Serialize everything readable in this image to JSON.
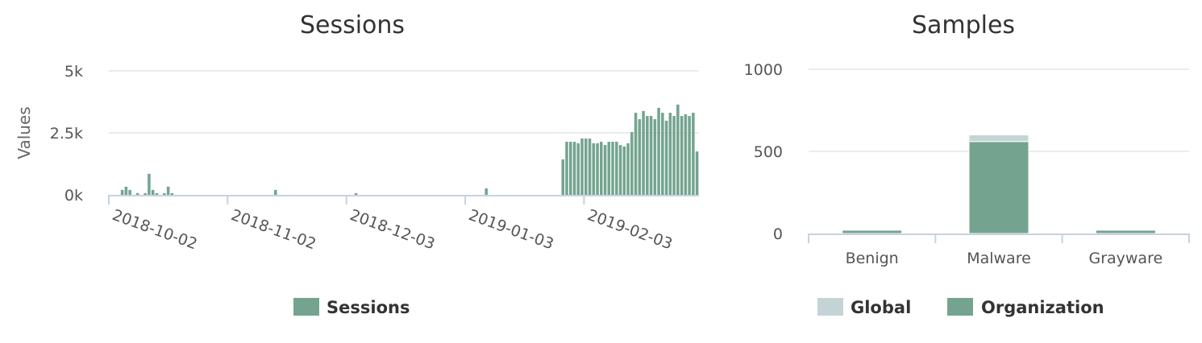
{
  "chart_data": [
    {
      "type": "bar",
      "title": "Sessions",
      "ylabel": "Values",
      "xlabel": "",
      "ylim": [
        0,
        5000
      ],
      "y_ticks": [
        "0k",
        "2.5k",
        "5k"
      ],
      "y_tick_values": [
        0,
        2500,
        5000
      ],
      "x_range": [
        "2018-10-02",
        "2019-03-04"
      ],
      "x_ticks": [
        "2018-10-02",
        "2018-11-02",
        "2018-12-03",
        "2019-01-03",
        "2019-02-03"
      ],
      "grid": true,
      "legend_position": "bottom",
      "series": [
        {
          "name": "Sessions",
          "color": "#74a490",
          "points": [
            {
              "date": "2018-10-05",
              "value": 200
            },
            {
              "date": "2018-10-06",
              "value": 330
            },
            {
              "date": "2018-10-07",
              "value": 200
            },
            {
              "date": "2018-10-09",
              "value": 70
            },
            {
              "date": "2018-10-11",
              "value": 70
            },
            {
              "date": "2018-10-12",
              "value": 850
            },
            {
              "date": "2018-10-13",
              "value": 200
            },
            {
              "date": "2018-10-14",
              "value": 70
            },
            {
              "date": "2018-10-16",
              "value": 70
            },
            {
              "date": "2018-10-17",
              "value": 330
            },
            {
              "date": "2018-10-18",
              "value": 70
            },
            {
              "date": "2018-11-14",
              "value": 200
            },
            {
              "date": "2018-12-05",
              "value": 70
            },
            {
              "date": "2019-01-08",
              "value": 260
            },
            {
              "date": "2019-01-28",
              "value": 1430
            },
            {
              "date": "2019-01-29",
              "value": 2140
            },
            {
              "date": "2019-01-30",
              "value": 2140
            },
            {
              "date": "2019-01-31",
              "value": 2140
            },
            {
              "date": "2019-02-01",
              "value": 2080
            },
            {
              "date": "2019-02-02",
              "value": 2270
            },
            {
              "date": "2019-02-03",
              "value": 2270
            },
            {
              "date": "2019-02-04",
              "value": 2270
            },
            {
              "date": "2019-02-05",
              "value": 2080
            },
            {
              "date": "2019-02-06",
              "value": 2080
            },
            {
              "date": "2019-02-07",
              "value": 2140
            },
            {
              "date": "2019-02-08",
              "value": 2010
            },
            {
              "date": "2019-02-09",
              "value": 2140
            },
            {
              "date": "2019-02-10",
              "value": 2140
            },
            {
              "date": "2019-02-11",
              "value": 2140
            },
            {
              "date": "2019-02-12",
              "value": 2010
            },
            {
              "date": "2019-02-13",
              "value": 1950
            },
            {
              "date": "2019-02-14",
              "value": 2080
            },
            {
              "date": "2019-02-15",
              "value": 2530
            },
            {
              "date": "2019-02-16",
              "value": 3310
            },
            {
              "date": "2019-02-17",
              "value": 3050
            },
            {
              "date": "2019-02-18",
              "value": 3380
            },
            {
              "date": "2019-02-19",
              "value": 3180
            },
            {
              "date": "2019-02-20",
              "value": 3180
            },
            {
              "date": "2019-02-21",
              "value": 3050
            },
            {
              "date": "2019-02-22",
              "value": 3510
            },
            {
              "date": "2019-02-23",
              "value": 3310
            },
            {
              "date": "2019-02-24",
              "value": 2990
            },
            {
              "date": "2019-02-25",
              "value": 3310
            },
            {
              "date": "2019-02-26",
              "value": 3180
            },
            {
              "date": "2019-02-27",
              "value": 3640
            },
            {
              "date": "2019-02-28",
              "value": 3180
            },
            {
              "date": "2019-03-01",
              "value": 3250
            },
            {
              "date": "2019-03-02",
              "value": 3180
            },
            {
              "date": "2019-03-03",
              "value": 3310
            },
            {
              "date": "2019-03-04",
              "value": 1750
            }
          ]
        }
      ]
    },
    {
      "type": "bar",
      "stacked": true,
      "title": "Samples",
      "xlabel": "",
      "ylabel": "",
      "ylim": [
        0,
        1000
      ],
      "y_ticks": [
        "0",
        "500",
        "1000"
      ],
      "y_tick_values": [
        0,
        500,
        1000
      ],
      "categories": [
        "Benign",
        "Malware",
        "Grayware"
      ],
      "grid": true,
      "legend_position": "bottom",
      "series": [
        {
          "name": "Global",
          "color": "#c4d3d6",
          "values": [
            0,
            40,
            0
          ]
        },
        {
          "name": "Organization",
          "color": "#74a490",
          "values": [
            20,
            560,
            20
          ]
        }
      ]
    }
  ]
}
